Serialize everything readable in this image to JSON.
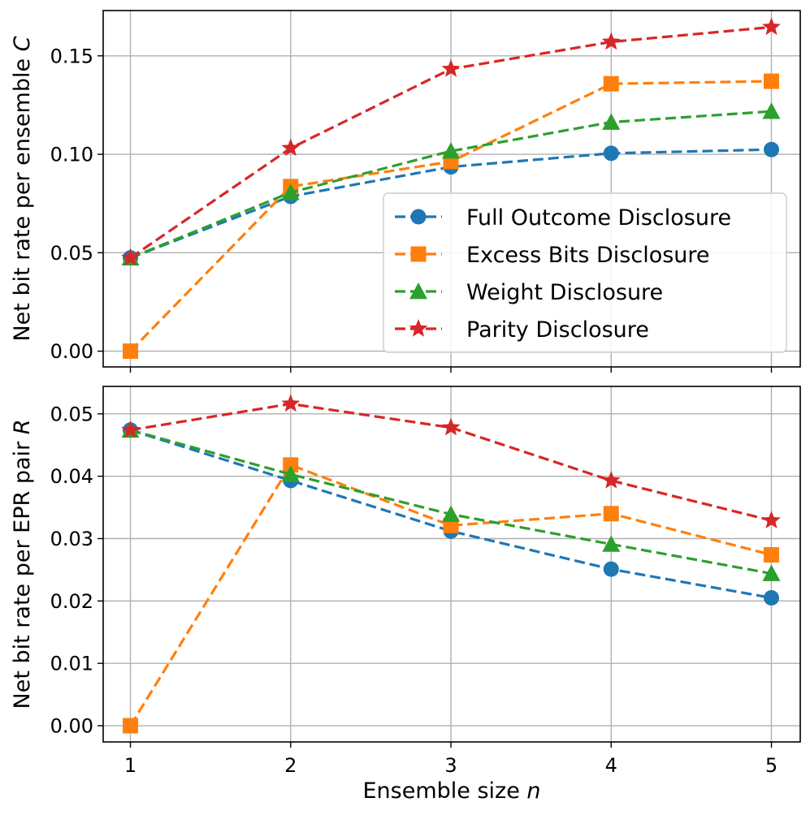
{
  "colors": {
    "full": "#1f77b4",
    "excess": "#ff7f0e",
    "weight": "#2ca02c",
    "parity": "#d62728"
  },
  "chart_data": [
    {
      "type": "line",
      "x": [
        1,
        2,
        3,
        4,
        5
      ],
      "xticks": [
        "1",
        "2",
        "3",
        "4",
        "5"
      ],
      "xlim": [
        0.83,
        5.18
      ],
      "ylim": [
        -0.008,
        0.173
      ],
      "yticks": [
        "0.00",
        "0.05",
        "0.10",
        "0.15"
      ],
      "ytick_values": [
        0.0,
        0.05,
        0.1,
        0.15
      ],
      "xlabel": "",
      "ylabel": {
        "text": "Net bit rate per ensemble",
        "var": "C"
      },
      "grid": true,
      "legend": "center-right",
      "legend_entries": [
        "Full Outcome Disclosure",
        "Excess Bits Disclosure",
        "Weight Disclosure",
        "Parity Disclosure"
      ],
      "series": [
        {
          "name": "Full Outcome Disclosure",
          "key": "full",
          "marker": "circle",
          "values": [
            0.0474,
            0.0786,
            0.0936,
            0.1005,
            0.1024
          ]
        },
        {
          "name": "Excess Bits Disclosure",
          "key": "excess",
          "marker": "square",
          "values": [
            0.0,
            0.0836,
            0.0963,
            0.1358,
            0.1371
          ]
        },
        {
          "name": "Weight Disclosure",
          "key": "weight",
          "marker": "triangle",
          "values": [
            0.0474,
            0.0806,
            0.1016,
            0.1163,
            0.1218
          ]
        },
        {
          "name": "Parity Disclosure",
          "key": "parity",
          "marker": "star",
          "values": [
            0.0474,
            0.1031,
            0.1433,
            0.1571,
            0.1646
          ]
        }
      ]
    },
    {
      "type": "line",
      "x": [
        1,
        2,
        3,
        4,
        5
      ],
      "xticks": [
        "1",
        "2",
        "3",
        "4",
        "5"
      ],
      "xlim": [
        0.83,
        5.18
      ],
      "ylim": [
        -0.0026,
        0.0544
      ],
      "yticks": [
        "0.00",
        "0.01",
        "0.02",
        "0.03",
        "0.04",
        "0.05"
      ],
      "ytick_values": [
        0.0,
        0.01,
        0.02,
        0.03,
        0.04,
        0.05
      ],
      "xlabel": {
        "text": "Ensemble size",
        "var": "n"
      },
      "ylabel": {
        "text": "Net bit rate per EPR pair",
        "var": "R"
      },
      "grid": true,
      "series": [
        {
          "name": "Full Outcome Disclosure",
          "key": "full",
          "marker": "circle",
          "values": [
            0.0474,
            0.0393,
            0.0312,
            0.0251,
            0.0205
          ]
        },
        {
          "name": "Excess Bits Disclosure",
          "key": "excess",
          "marker": "square",
          "values": [
            0.0,
            0.0418,
            0.0321,
            0.034,
            0.0274
          ]
        },
        {
          "name": "Weight Disclosure",
          "key": "weight",
          "marker": "triangle",
          "values": [
            0.0474,
            0.0403,
            0.0339,
            0.0291,
            0.0244
          ]
        },
        {
          "name": "Parity Disclosure",
          "key": "parity",
          "marker": "star",
          "values": [
            0.0474,
            0.0516,
            0.0478,
            0.0393,
            0.0329
          ]
        }
      ]
    }
  ]
}
